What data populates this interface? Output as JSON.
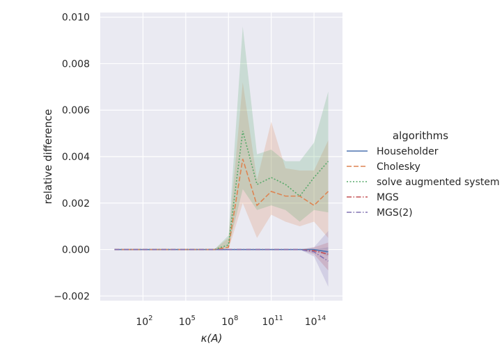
{
  "chart_data": {
    "type": "line",
    "title": "",
    "xlabel": "κ(A)",
    "ylabel": "relative difference",
    "x_scale": "log",
    "x": [
      1,
      10,
      100,
      1000,
      10000,
      100000,
      1000000,
      10000000,
      100000000,
      1000000000,
      10000000000,
      100000000000,
      1000000000000,
      10000000000000,
      100000000000000,
      1000000000000000
    ],
    "xlim": [
      0.1,
      1e+16
    ],
    "ylim": [
      -0.0022,
      0.0102
    ],
    "x_ticks": [
      {
        "value": 100,
        "base": "10",
        "exp": "2"
      },
      {
        "value": 100000,
        "base": "10",
        "exp": "5"
      },
      {
        "value": 100000000,
        "base": "10",
        "exp": "8"
      },
      {
        "value": 100000000000,
        "base": "10",
        "exp": "11"
      },
      {
        "value": 100000000000000,
        "base": "10",
        "exp": "14"
      }
    ],
    "y_ticks": [
      {
        "value": -0.002,
        "label": "−0.002"
      },
      {
        "value": 0.0,
        "label": "0.000"
      },
      {
        "value": 0.002,
        "label": "0.002"
      },
      {
        "value": 0.004,
        "label": "0.004"
      },
      {
        "value": 0.006,
        "label": "0.006"
      },
      {
        "value": 0.008,
        "label": "0.008"
      },
      {
        "value": 0.01,
        "label": "0.010"
      }
    ],
    "grid": true,
    "legend": {
      "title": "algorithms",
      "placement": "right"
    },
    "series": [
      {
        "name": "Householder",
        "color": "#4c72b0",
        "dash": "solid",
        "values": [
          0,
          0,
          0,
          0,
          0,
          0,
          0,
          0,
          0,
          0,
          0,
          0,
          0,
          0,
          0,
          -0.0001
        ],
        "lower": [
          0,
          0,
          0,
          0,
          0,
          0,
          0,
          0,
          0,
          0,
          0,
          0,
          0,
          0,
          0,
          -0.0003
        ],
        "upper": [
          0,
          0,
          0,
          0,
          0,
          0,
          0,
          0,
          0,
          0,
          0,
          0,
          0,
          0,
          0,
          0.0001
        ]
      },
      {
        "name": "Cholesky",
        "color": "#dd8452",
        "dash": "dashed",
        "values": [
          0,
          0,
          0,
          0,
          0,
          0,
          0,
          0,
          0.0001,
          0.0039,
          0.0019,
          0.0025,
          0.0023,
          0.0023,
          0.0019,
          0.0025
        ],
        "lower": [
          0,
          0,
          0,
          0,
          0,
          0,
          0,
          0,
          0.0,
          0.002,
          0.0005,
          0.0015,
          0.0012,
          0.001,
          0.0012,
          0.0005
        ],
        "upper": [
          0,
          0,
          0,
          0,
          0,
          0,
          0,
          0,
          0.0005,
          0.0072,
          0.003,
          0.0055,
          0.0035,
          0.0034,
          0.0034,
          0.0047
        ]
      },
      {
        "name": "solve augmented system",
        "color": "#55a868",
        "dash": "dotted",
        "values": [
          0,
          0,
          0,
          0,
          0,
          0,
          0,
          0,
          0.0002,
          0.0051,
          0.0028,
          0.0031,
          0.0028,
          0.0023,
          0.0031,
          0.0038
        ],
        "lower": [
          0,
          0,
          0,
          0,
          0,
          0,
          0,
          0,
          0.0001,
          0.0026,
          0.0017,
          0.0019,
          0.0017,
          0.0012,
          0.0017,
          0.0016
        ],
        "upper": [
          0,
          0,
          0,
          0,
          0,
          0,
          0,
          0,
          0.0006,
          0.0096,
          0.0041,
          0.0043,
          0.0038,
          0.0038,
          0.0046,
          0.0068
        ]
      },
      {
        "name": "MGS",
        "color": "#c44e52",
        "dash": "dashdot",
        "values": [
          0,
          0,
          0,
          0,
          0,
          0,
          0,
          0,
          0,
          0,
          0,
          0,
          0,
          0,
          -5e-05,
          -0.0002
        ],
        "lower": [
          0,
          0,
          0,
          0,
          0,
          0,
          0,
          0,
          0,
          0,
          0,
          0,
          0,
          0,
          -0.0002,
          -0.0009
        ],
        "upper": [
          0,
          0,
          0,
          0,
          0,
          0,
          0,
          0,
          0,
          0,
          0,
          0,
          0,
          0,
          0.0001,
          0.0003
        ]
      },
      {
        "name": "MGS(2)",
        "color": "#8172b3",
        "dash": "dashdot",
        "values": [
          0,
          0,
          0,
          0,
          0,
          0,
          0,
          0,
          0,
          0,
          0,
          0,
          0,
          0,
          -0.0001,
          -0.0005
        ],
        "lower": [
          0,
          0,
          0,
          0,
          0,
          0,
          0,
          0,
          0,
          0,
          0,
          0,
          0,
          0,
          -0.0003,
          -0.0016
        ],
        "upper": [
          0,
          0,
          0,
          0,
          0,
          0,
          0,
          0,
          0,
          0,
          0,
          0,
          0,
          0,
          0.0001,
          0.0008
        ]
      }
    ]
  }
}
